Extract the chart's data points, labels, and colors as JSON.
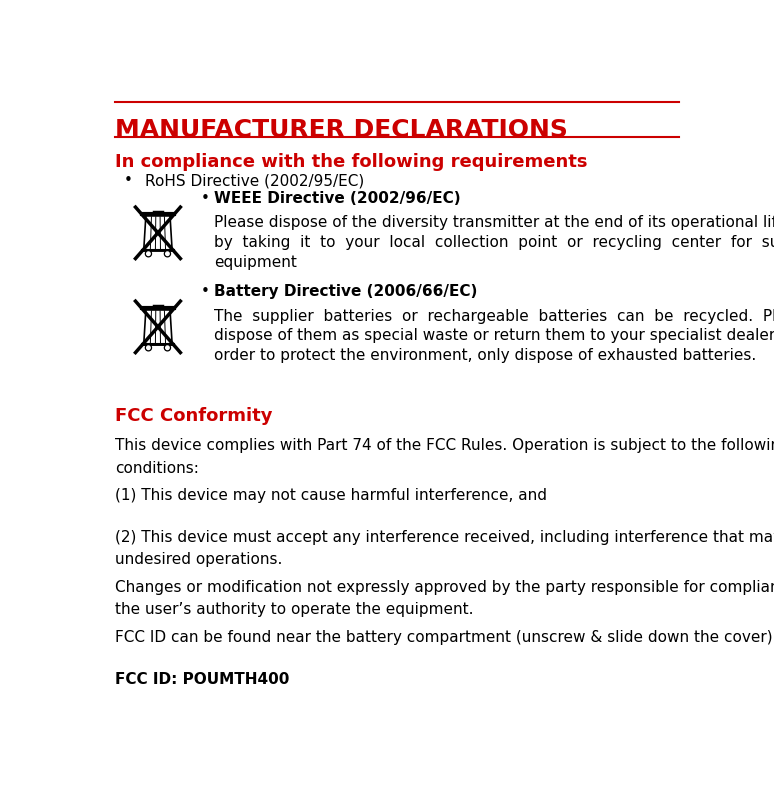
{
  "title": "MANUFACTURER DECLARATIONS",
  "title_color": "#CC0000",
  "title_fontsize": 18,
  "section1_heading": "In compliance with the following requirements",
  "section1_heading_color": "#CC0000",
  "section1_heading_fontsize": 13,
  "bullet1": "RoHS Directive (2002/95/EC)",
  "bullet2_title": "WEEE Directive (2002/96/EC)",
  "bullet3_title": "Battery Directive (2006/66/EC)",
  "section2_heading": "FCC Conformity",
  "section2_heading_color": "#CC0000",
  "section2_heading_fontsize": 13,
  "fcc_para1": "This device complies with Part 74 of the FCC Rules. Operation is subject to the following two\nconditions:",
  "fcc_para2": "(1) This device may not cause harmful interference, and",
  "fcc_para3": "(2) This device must accept any interference received, including interference that may cause\nundesired operations.",
  "fcc_para4": "Changes or modification not expressly approved by the party responsible for compliance could void\nthe user’s authority to operate the equipment.",
  "fcc_para5": "FCC ID can be found near the battery compartment (unscrew & slide down the cover).",
  "fcc_id_label": "FCC ID: POUMTH400",
  "body_fontsize": 11,
  "body_color": "#000000",
  "background_color": "#ffffff",
  "line_color": "#CC0000",
  "bullet2_body_line1": "Please dispose of the diversity transmitter at the end of its operational lifetime",
  "bullet2_body_line2": "by  taking  it  to  your  local  collection  point  or  recycling  center  for  such",
  "bullet2_body_line3": "equipment",
  "bullet3_body_line1": "The  supplier  batteries  or  rechargeable  batteries  can  be  recycled.  Please",
  "bullet3_body_line2": "dispose of them as special waste or return them to your specialist dealer. In",
  "bullet3_body_line3": "order to protect the environment, only dispose of exhausted batteries."
}
